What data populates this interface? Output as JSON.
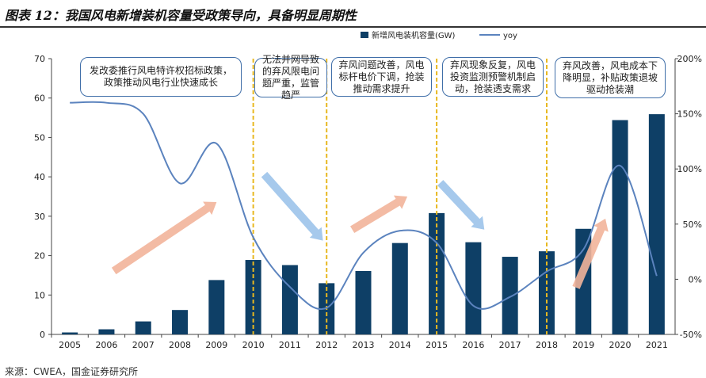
{
  "title": "图表 12：我国风电新增装机容量受政策导向，具备明显周期性",
  "source": "来源：CWEA，国金证券研究所",
  "colors": {
    "bar": "#0e3f66",
    "line": "#5b83be",
    "divider": "#e8b820",
    "arrow_up": "#f2b49a",
    "arrow_down": "#9cc3ea",
    "box_border": "#3f6ea8"
  },
  "chart_data": {
    "type": "bar",
    "title": "",
    "categories": [
      "2005",
      "2006",
      "2007",
      "2008",
      "2009",
      "2010",
      "2011",
      "2012",
      "2013",
      "2014",
      "2015",
      "2016",
      "2017",
      "2018",
      "2019",
      "2020",
      "2021"
    ],
    "series": [
      {
        "name": "新增风电装机容量(GW)",
        "type": "bar",
        "axis": "left",
        "values": [
          0.5,
          1.3,
          3.3,
          6.2,
          13.8,
          18.9,
          17.6,
          13.0,
          16.1,
          23.2,
          30.8,
          23.4,
          19.7,
          21.1,
          26.8,
          54.4,
          55.9
        ]
      },
      {
        "name": "yoy",
        "type": "line",
        "axis": "right",
        "values": [
          1.6,
          1.6,
          1.5,
          0.87,
          1.23,
          0.38,
          -0.07,
          -0.26,
          0.24,
          0.44,
          0.33,
          -0.24,
          -0.16,
          0.07,
          0.27,
          1.03,
          0.03
        ]
      }
    ],
    "ylim_left": [
      0,
      70
    ],
    "yticks_left": [
      0,
      10,
      20,
      30,
      40,
      50,
      60,
      70
    ],
    "ylim_right": [
      -0.5,
      2.0
    ],
    "yticks_right": [
      "-50%",
      "0%",
      "50%",
      "100%",
      "150%",
      "200%"
    ],
    "yticks_right_values": [
      -0.5,
      0,
      0.5,
      1.0,
      1.5,
      2.0
    ],
    "legend": [
      "新增风电装机容量(GW)",
      "yoy"
    ],
    "legend_position": "top-right",
    "dividers_after": [
      "2010",
      "2012",
      "2015",
      "2018"
    ],
    "annotations": [
      "发改委推行风电特许权招标政策，政策推动风电行业快速成长",
      "无法并网导致的弃风限电问题严重，监管趋严",
      "弃风问题改善，风电标杆电价下调，抢装推动需求提升",
      "弃风现象反复，风电投资监测预警机制启动，抢装透支需求",
      "弃风改善，风电成本下降明显，补贴政策退坡驱动抢装潮"
    ],
    "arrows": [
      "up",
      "down",
      "up",
      "down",
      "up"
    ]
  }
}
